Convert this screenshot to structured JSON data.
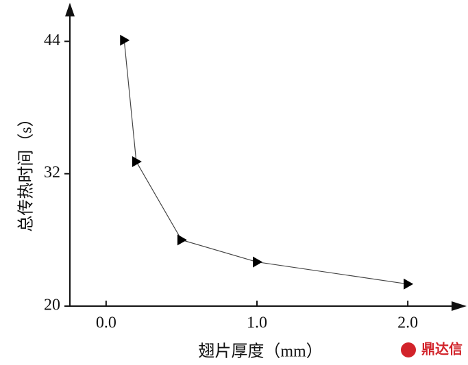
{
  "chart_data": {
    "type": "line",
    "xlabel": "翅片厚度（mm）",
    "ylabel": "总传热时间（s）",
    "watermark": "鼎达信",
    "x": [
      0.12,
      0.2,
      0.5,
      1.0,
      2.0
    ],
    "series": [
      {
        "color": "#000000",
        "values": [
          44.1,
          33.1,
          26.0,
          24.0,
          22.0
        ]
      }
    ],
    "xlim": [
      -0.24,
      2.39
    ],
    "ylim": [
      20,
      47.5
    ],
    "xticks": [
      {
        "value": 0,
        "label": "0.0"
      },
      {
        "value": 1,
        "label": "1.0"
      },
      {
        "value": 2,
        "label": "2.0"
      }
    ],
    "yticks": [
      20,
      32,
      44
    ],
    "grid": false
  }
}
